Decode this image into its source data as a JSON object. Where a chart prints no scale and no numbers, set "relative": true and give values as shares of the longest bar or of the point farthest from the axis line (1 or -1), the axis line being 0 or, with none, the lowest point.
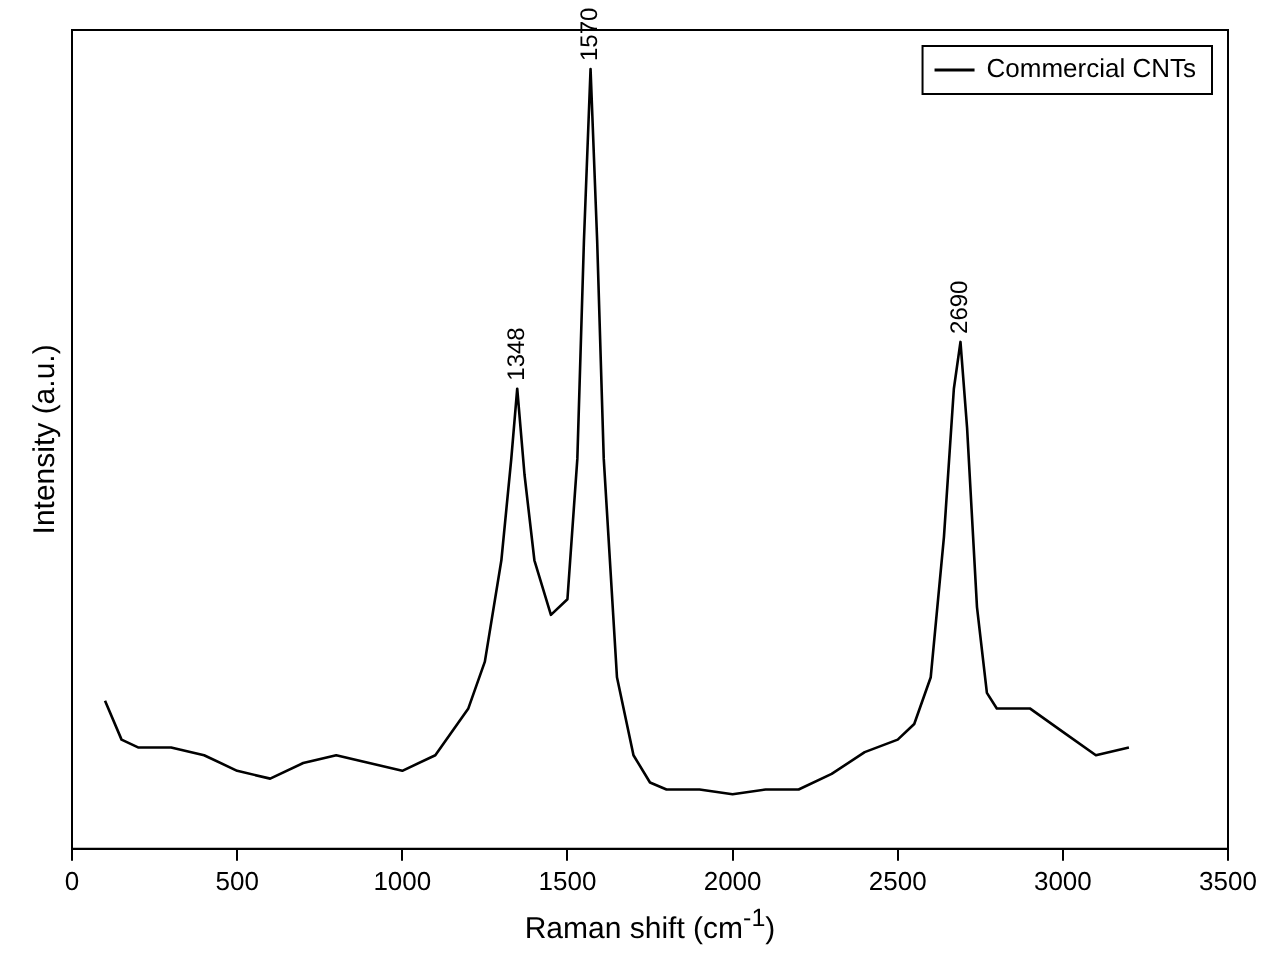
{
  "chart_data": {
    "type": "line",
    "relative": true,
    "xlabel": "Raman shift (cm$^{-1}$)",
    "ylabel": "Intensity (a.u.)",
    "xlim": [
      0,
      3500
    ],
    "xticks": [
      0,
      500,
      1000,
      1500,
      2000,
      2500,
      3000,
      3500
    ],
    "legend": "top right",
    "marker": "none",
    "line_style": "solid",
    "grid": false,
    "series": [
      {
        "name": "Commercial CNTs",
        "color": "#000000",
        "x": [
          100,
          150,
          200,
          300,
          400,
          500,
          600,
          700,
          800,
          900,
          1000,
          1100,
          1200,
          1250,
          1300,
          1330,
          1348,
          1370,
          1400,
          1450,
          1500,
          1530,
          1550,
          1570,
          1590,
          1610,
          1650,
          1700,
          1750,
          1800,
          1900,
          2000,
          2100,
          2200,
          2300,
          2400,
          2500,
          2550,
          2600,
          2640,
          2670,
          2690,
          2710,
          2740,
          2770,
          2800,
          2900,
          3000,
          3100,
          3200
        ],
        "values": [
          0.19,
          0.14,
          0.13,
          0.13,
          0.12,
          0.1,
          0.09,
          0.11,
          0.12,
          0.11,
          0.1,
          0.12,
          0.18,
          0.24,
          0.37,
          0.5,
          0.59,
          0.48,
          0.37,
          0.3,
          0.32,
          0.5,
          0.78,
          1.0,
          0.78,
          0.5,
          0.22,
          0.12,
          0.085,
          0.076,
          0.076,
          0.07,
          0.076,
          0.076,
          0.096,
          0.124,
          0.14,
          0.16,
          0.22,
          0.4,
          0.59,
          0.65,
          0.54,
          0.31,
          0.2,
          0.18,
          0.18,
          0.15,
          0.12,
          0.13
        ]
      }
    ],
    "annotations": [
      {
        "text": "1348",
        "x": 1348,
        "y": 0.59
      },
      {
        "text": "1570",
        "x": 1570,
        "y": 1.0
      },
      {
        "text": "2690",
        "x": 2690,
        "y": 0.65
      }
    ]
  }
}
